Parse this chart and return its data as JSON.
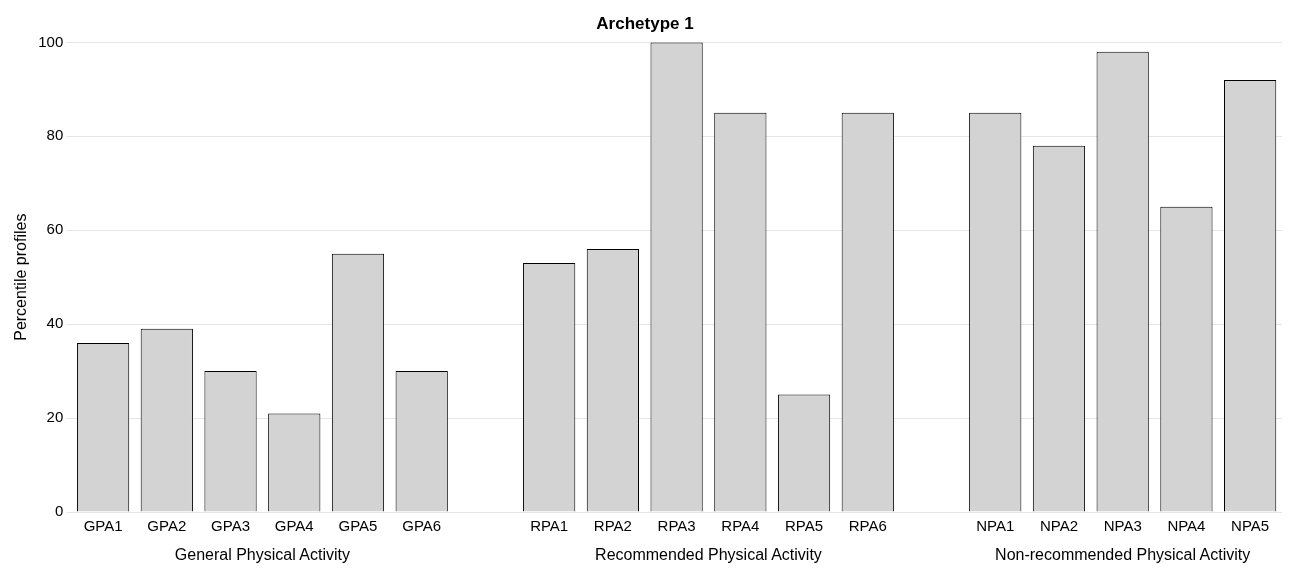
{
  "chart_data": {
    "type": "bar",
    "title": "Archetype 1",
    "ylabel": "Percentile profiles",
    "categories": [
      "GPA1",
      "GPA2",
      "GPA3",
      "GPA4",
      "GPA5",
      "GPA6",
      null,
      "RPA1",
      "RPA2",
      "RPA3",
      "RPA4",
      "RPA5",
      "RPA6",
      null,
      "NPA1",
      "NPA2",
      "NPA3",
      "NPA4",
      "NPA5"
    ],
    "values": [
      36,
      39,
      30,
      21,
      55,
      30,
      null,
      53,
      56,
      100,
      85,
      25,
      85,
      null,
      85,
      78,
      98,
      65,
      92
    ],
    "color": "#d3d3d3",
    "ylim": [
      0,
      100
    ],
    "yticks": [
      0,
      20,
      40,
      60,
      80,
      100
    ],
    "grid": "y",
    "annotations": [
      "General Physical Activity",
      "Recommended Physical Activity",
      "Non-recommended Physical Activity"
    ]
  }
}
